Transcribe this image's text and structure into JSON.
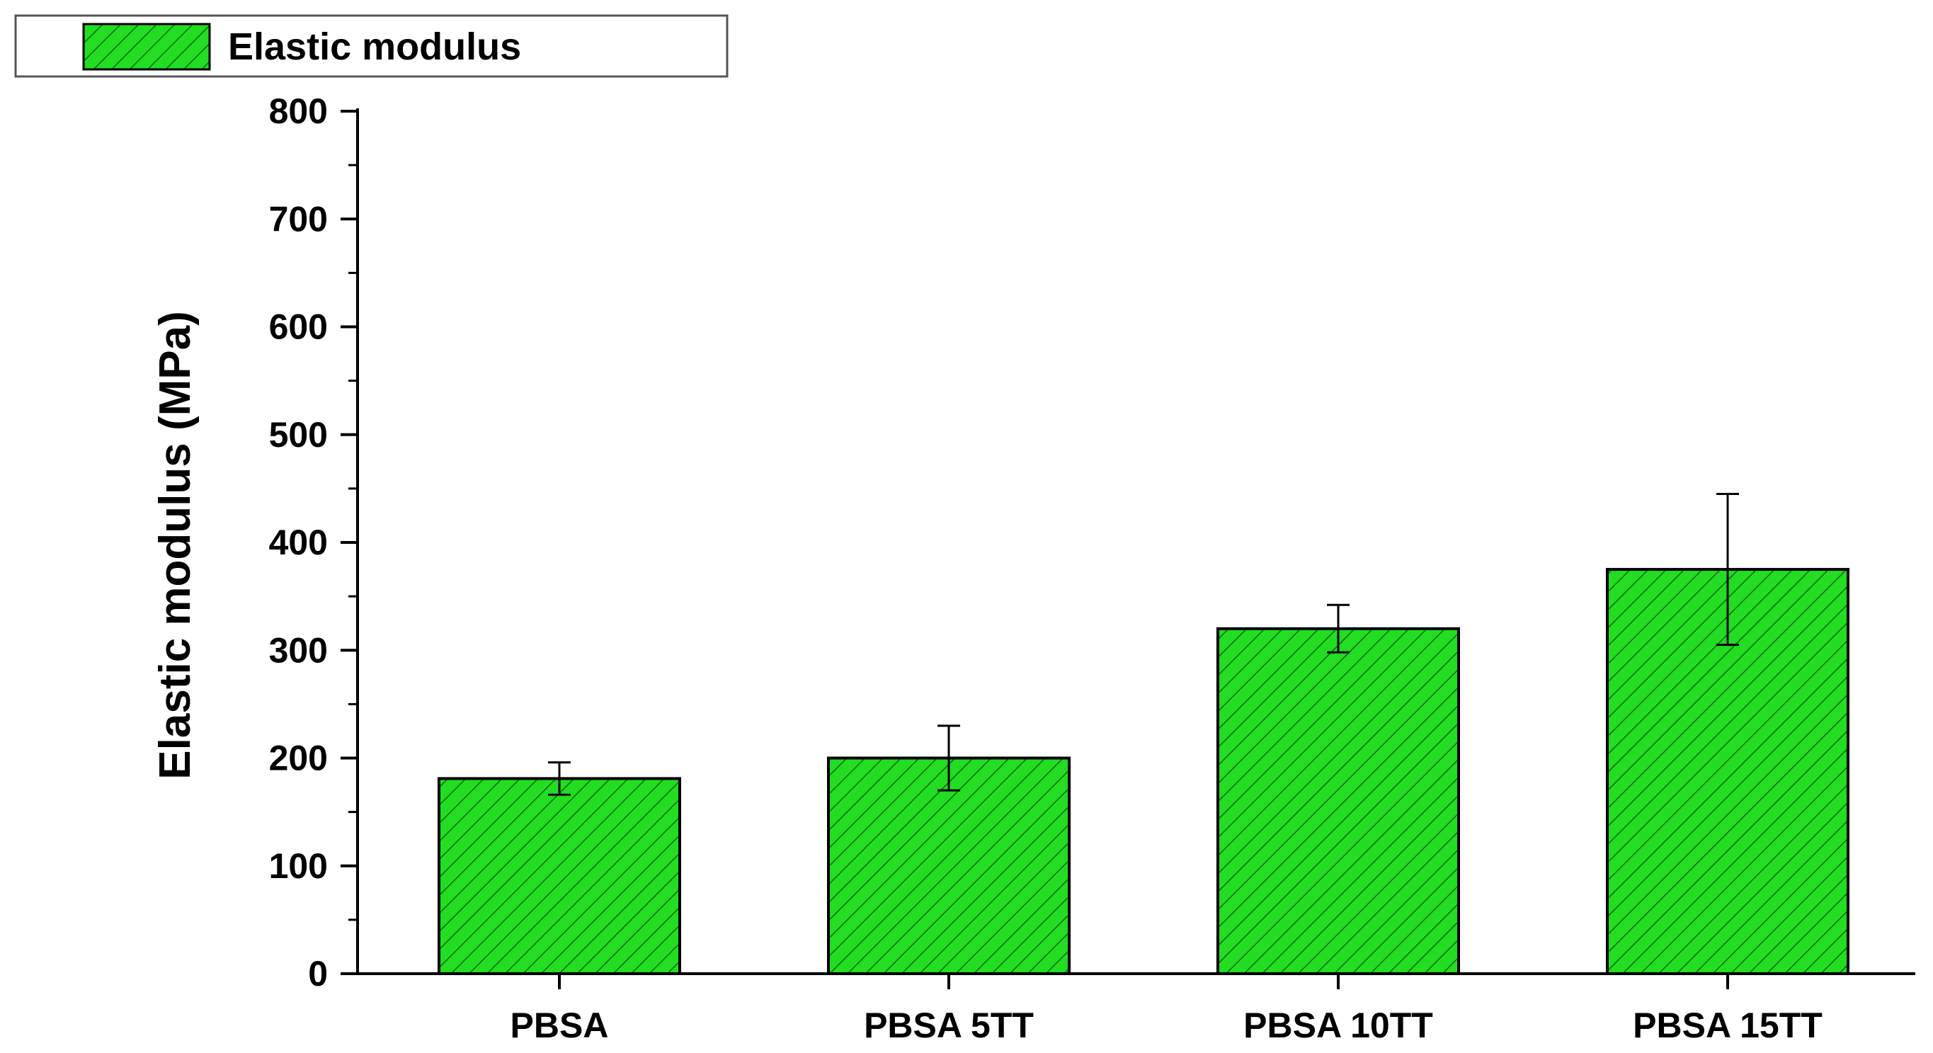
{
  "chart_data": {
    "type": "bar",
    "title": "",
    "categories": [
      "PBSA",
      "PBSA 5TT",
      "PBSA 10TT",
      "PBSA 15TT"
    ],
    "series": [
      {
        "name": "Elastic modulus",
        "values": [
          181,
          200,
          320,
          375
        ],
        "error": [
          15,
          30,
          22,
          70
        ]
      }
    ],
    "xlabel": "",
    "ylabel": "Elastic modulus (MPa)",
    "ylim": [
      0,
      800
    ],
    "yticks": [
      "0",
      "100",
      "200",
      "300",
      "400",
      "500",
      "600",
      "700",
      "800"
    ],
    "grid": false,
    "legend_position": "top-left",
    "bar_color": "#22dd22",
    "hatch": "diagonal"
  }
}
